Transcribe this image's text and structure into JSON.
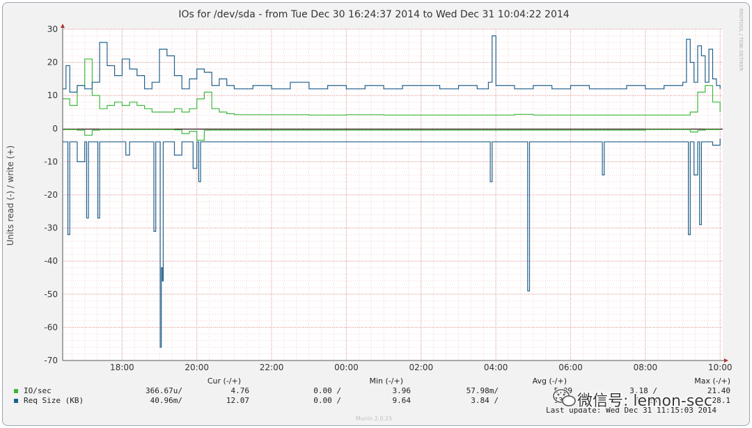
{
  "chart_data": {
    "type": "line",
    "title": "IOs for /dev/sda - from Tue Dec 30 16:24:37 2014 to Wed Dec 31 10:04:22 2014",
    "ylabel": "Units read (-) / write (+)",
    "side_label": "RRDTOOL / TOBI OETIKER",
    "footer": "Munin 2.0.25",
    "ylim": [
      -70,
      30
    ],
    "yticks": [
      30,
      20,
      10,
      0,
      -10,
      -20,
      -30,
      -40,
      -50,
      -60,
      -70
    ],
    "xlim": [
      16.41,
      34.07
    ],
    "xticks": [
      {
        "value": 18,
        "label": "18:00"
      },
      {
        "value": 20,
        "label": "20:00"
      },
      {
        "value": 22,
        "label": "22:00"
      },
      {
        "value": 24,
        "label": "00:00"
      },
      {
        "value": 26,
        "label": "02:00"
      },
      {
        "value": 28,
        "label": "04:00"
      },
      {
        "value": 30,
        "label": "06:00"
      },
      {
        "value": 32,
        "label": "08:00"
      },
      {
        "value": 34,
        "label": "10:00"
      }
    ],
    "grid": true,
    "series": [
      {
        "name": "IO/sec (write)",
        "color": "#3cb83c",
        "x": [
          16.4,
          16.6,
          16.8,
          17.0,
          17.2,
          17.4,
          17.6,
          17.8,
          18.0,
          18.2,
          18.4,
          18.6,
          18.8,
          19.0,
          19.2,
          19.4,
          19.6,
          19.8,
          20.0,
          20.2,
          20.4,
          20.6,
          20.8,
          21.0,
          22.0,
          23.0,
          24.0,
          25.0,
          26.0,
          27.0,
          28.0,
          28.5,
          29.0,
          30.0,
          31.0,
          32.0,
          33.0,
          33.2,
          33.4,
          33.6,
          33.8,
          34.0
        ],
        "y": [
          9,
          7,
          13,
          21,
          10,
          6,
          7,
          8,
          7,
          8,
          7,
          6,
          5,
          5,
          5,
          6,
          5,
          6,
          9,
          11,
          6,
          5,
          4.5,
          4.2,
          4.2,
          4.1,
          4.2,
          4.1,
          4.1,
          4.1,
          4.1,
          4.3,
          4.1,
          4.1,
          4.1,
          4.1,
          4.1,
          5,
          11,
          13,
          8,
          5
        ]
      },
      {
        "name": "IO/sec (read)",
        "color": "#3cb83c",
        "x": [
          16.4,
          16.8,
          17.0,
          17.2,
          17.4,
          19.4,
          19.6,
          19.8,
          20.0,
          20.2,
          32.0,
          33.2,
          33.4,
          33.6,
          34.0
        ],
        "y": [
          -0.3,
          -0.5,
          -2,
          -0.5,
          -0.3,
          -0.4,
          -1.5,
          -0.8,
          -3.5,
          -0.5,
          -0.3,
          -1,
          -0.5,
          -0.3,
          -0.3
        ]
      },
      {
        "name": "Req Size (KB) (write)",
        "color": "#1f5f8b",
        "x": [
          16.4,
          16.5,
          16.6,
          16.8,
          17.0,
          17.2,
          17.4,
          17.6,
          17.8,
          18.0,
          18.2,
          18.4,
          18.6,
          18.8,
          19.0,
          19.2,
          19.4,
          19.6,
          19.8,
          20.0,
          20.2,
          20.4,
          20.6,
          20.8,
          21.0,
          21.5,
          22.0,
          22.5,
          23.0,
          23.5,
          24.0,
          24.5,
          25.0,
          25.5,
          26.0,
          26.5,
          27.0,
          27.5,
          27.8,
          27.9,
          28.0,
          28.5,
          29.0,
          29.5,
          30.0,
          30.5,
          31.0,
          31.5,
          32.0,
          32.5,
          33.0,
          33.1,
          33.2,
          33.3,
          33.4,
          33.5,
          33.6,
          33.7,
          33.8,
          33.9,
          34.0
        ],
        "y": [
          12,
          19,
          11,
          13,
          12,
          14,
          26,
          19,
          16,
          21,
          18,
          16,
          12,
          14,
          24,
          22,
          16,
          12,
          15,
          18,
          17,
          13,
          15,
          13,
          12,
          13,
          12,
          14,
          12,
          13,
          12,
          13,
          12,
          13,
          13,
          12,
          13,
          12,
          14,
          28,
          13,
          12,
          13,
          12,
          13,
          12,
          12,
          13,
          12,
          13,
          14,
          27,
          20,
          14,
          25,
          22,
          14,
          24,
          15,
          13,
          12
        ]
      },
      {
        "name": "Req Size (KB) (read)",
        "color": "#1f5f8b",
        "x": [
          16.4,
          16.5,
          16.55,
          16.6,
          16.8,
          17.0,
          17.05,
          17.1,
          17.3,
          17.35,
          17.4,
          17.6,
          17.8,
          18.0,
          18.1,
          18.2,
          18.8,
          18.85,
          18.9,
          19.0,
          19.02,
          19.05,
          19.08,
          19.1,
          19.2,
          19.4,
          19.6,
          19.8,
          19.9,
          20.0,
          20.05,
          20.1,
          20.4,
          20.6,
          21.0,
          22.0,
          23.0,
          24.0,
          25.0,
          26.0,
          27.0,
          27.8,
          27.85,
          27.9,
          28.0,
          28.8,
          28.85,
          28.9,
          29.0,
          30.0,
          30.8,
          30.85,
          30.9,
          31.0,
          32.0,
          33.0,
          33.1,
          33.15,
          33.2,
          33.3,
          33.4,
          33.45,
          33.5,
          33.6,
          33.8,
          34.0
        ],
        "y": [
          -4,
          -4,
          -32,
          -4,
          -10,
          -4,
          -27,
          -4,
          -4,
          -27,
          -4,
          -4,
          -4,
          -4,
          -8,
          -4,
          -4,
          -31,
          -4,
          -4,
          -66,
          -42,
          -46,
          -4,
          -4,
          -8,
          -4,
          -4,
          -12,
          -4,
          -16,
          -4,
          -4,
          -4,
          -4,
          -4,
          -4,
          -4,
          -4,
          -4,
          -4,
          -4,
          -16,
          -4,
          -4,
          -4,
          -49,
          -4,
          -4,
          -4,
          -4,
          -14,
          -4,
          -4,
          -4,
          -4,
          -4,
          -32,
          -4,
          -14,
          -4,
          -29,
          -4,
          -4,
          -5,
          -3
        ]
      }
    ],
    "legend": {
      "headers": {
        "cur": "Cur (-/+)",
        "min": "Min (-/+)",
        "avg": "Avg (-/+)",
        "max": "Max (-/+)"
      },
      "rows": [
        {
          "name": "IO/sec",
          "color": "#3cb83c",
          "cur_r": "366.67u/",
          "cur_w": "4.76",
          "min_r": "0.00 /",
          "min_w": "3.96",
          "avg_r": "57.98m/",
          "avg_w": "5.09",
          "max_r": "3.18 /",
          "max_w": "21.40"
        },
        {
          "name": "Req Size (KB)",
          "color": "#1f5f8b",
          "cur_r": "40.96m/",
          "cur_w": "12.07",
          "min_r": "0.00 /",
          "min_w": "9.64",
          "avg_r": "3.84 /",
          "avg_w": "13.2",
          "max_r": "66.28",
          "max_w": "28.1"
        }
      ],
      "last_update": "Last update: Wed Dec 31 11:15:03 2014"
    },
    "watermark": "微信号: lemon-sec"
  }
}
